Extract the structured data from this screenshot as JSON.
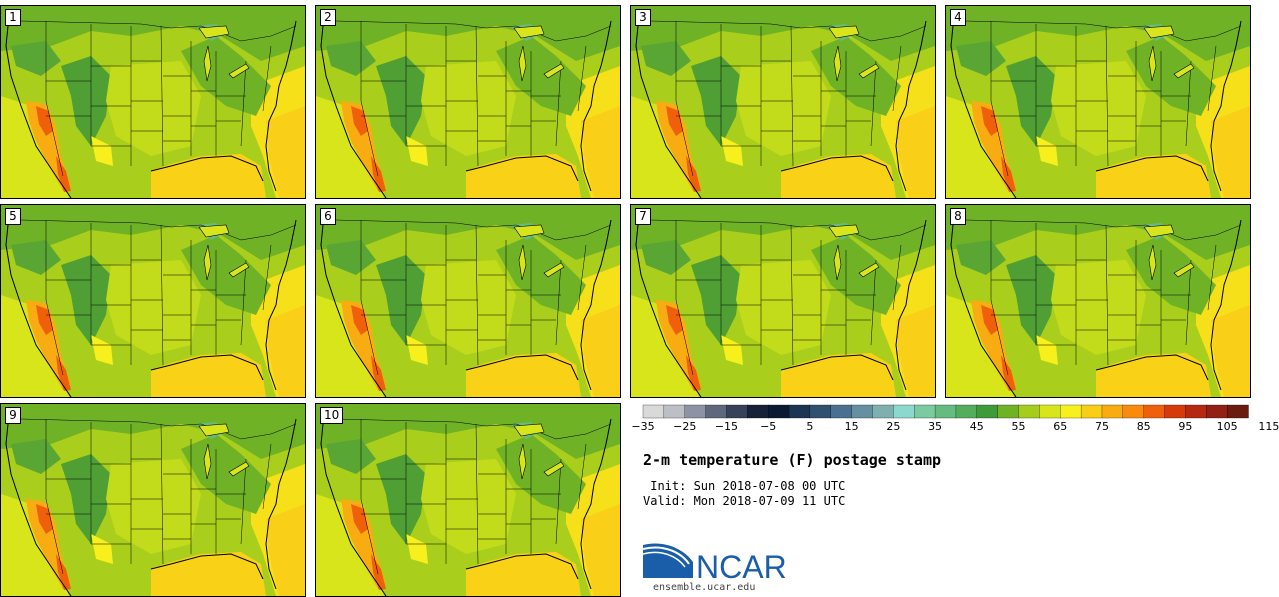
{
  "panels": [
    {
      "number": "1"
    },
    {
      "number": "2"
    },
    {
      "number": "3"
    },
    {
      "number": "4"
    },
    {
      "number": "5"
    },
    {
      "number": "6"
    },
    {
      "number": "7"
    },
    {
      "number": "8"
    },
    {
      "number": "9"
    },
    {
      "number": "10"
    }
  ],
  "colorbar": {
    "colors": [
      "#d9d9d9",
      "#bcbfc6",
      "#8c93a3",
      "#5d687d",
      "#36415a",
      "#172238",
      "#0b1a33",
      "#1c3553",
      "#2f5070",
      "#4a7090",
      "#66909f",
      "#7eb0b0",
      "#8dd8cc",
      "#7ccaa0",
      "#66bb80",
      "#53ad5d",
      "#3f9a3a",
      "#6fb226",
      "#a6cc1d",
      "#d8e51a",
      "#f8f01c",
      "#f9ce16",
      "#f9ab12",
      "#f88a0e",
      "#f0600a",
      "#d63a0a",
      "#b62812",
      "#922014",
      "#6a1c10"
    ],
    "tick_labels": [
      "−35",
      "−25",
      "−15",
      "−5",
      "5",
      "15",
      "25",
      "35",
      "45",
      "55",
      "65",
      "75",
      "85",
      "95",
      "105",
      "115"
    ]
  },
  "title": "2-m temperature (F) postage stamp",
  "init_line": " Init: Sun 2018-07-08 00 UTC",
  "valid_line": "Valid: Mon 2018-07-09 11 UTC",
  "logo": {
    "text": "NCAR",
    "url": "ensemble.ucar.edu",
    "blue": "#1a5da8"
  }
}
